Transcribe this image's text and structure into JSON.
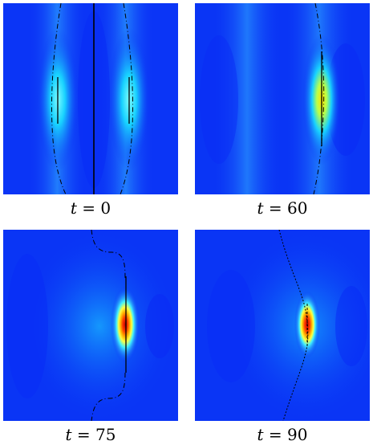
{
  "colors": {
    "background_blue": "#0a2cf5",
    "low_cyan": "#2a78ff",
    "mid_cyan": "#18d2ff",
    "yellow": "#ffe200",
    "orange": "#ff7a00",
    "red": "#d40000",
    "line": "#000000"
  },
  "panels": [
    {
      "id": "p0",
      "t_var": "t",
      "t_value": "= 0"
    },
    {
      "id": "p60",
      "t_var": "t",
      "t_value": "= 60"
    },
    {
      "id": "p75",
      "t_var": "t",
      "t_value": "= 75"
    },
    {
      "id": "p90",
      "t_var": "t",
      "t_value": "= 90"
    }
  ]
}
